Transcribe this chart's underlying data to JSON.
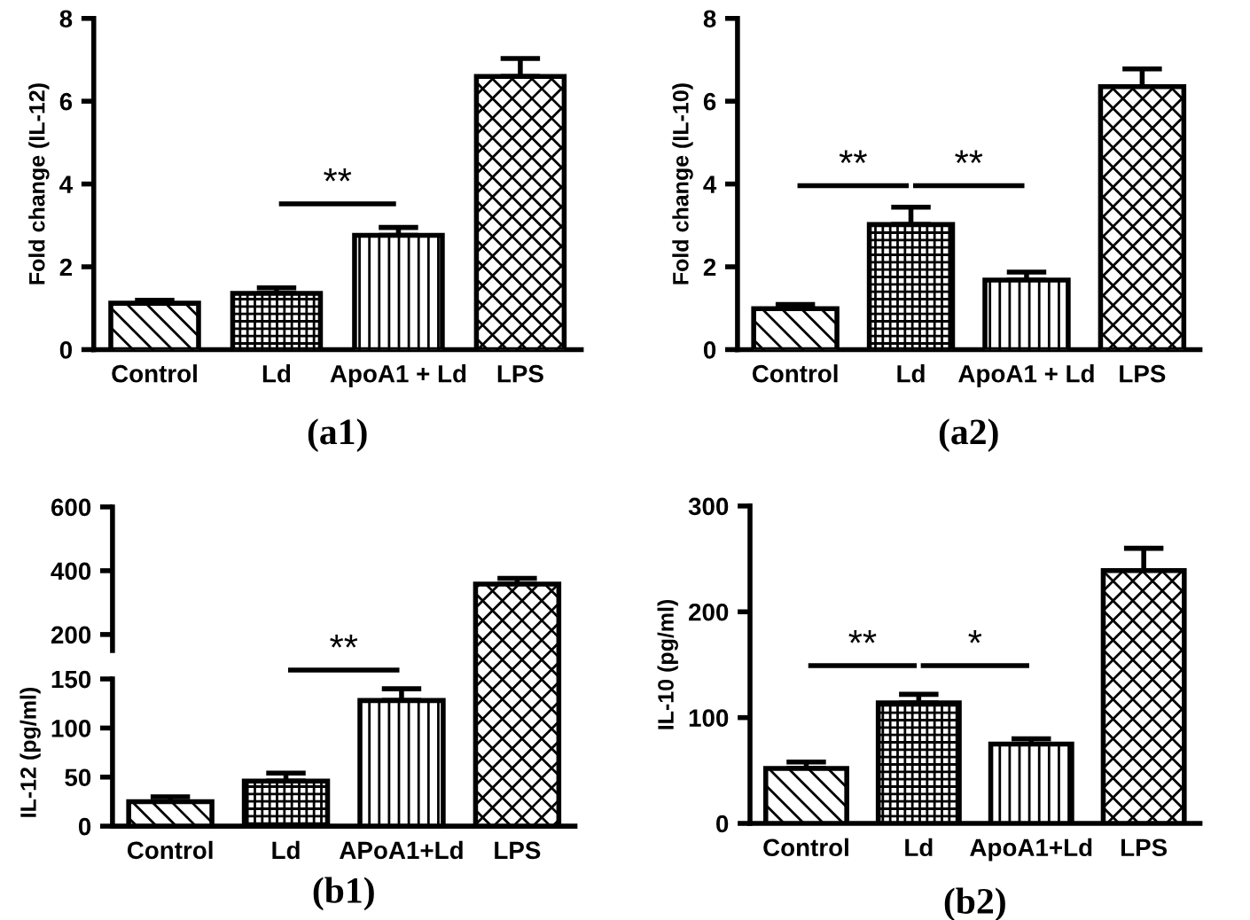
{
  "chart_data": [
    {
      "type": "bar",
      "title": "(a1)",
      "ylabel": "Fold change (IL-12)",
      "categories": [
        "Control",
        "Ld",
        "ApoA1 + Ld",
        "LPS"
      ],
      "values": [
        1.12,
        1.36,
        2.76,
        6.6
      ],
      "errors": [
        0.07,
        0.13,
        0.19,
        0.43
      ],
      "ylim": [
        0,
        8
      ],
      "yticks": [
        0,
        2,
        4,
        6,
        8
      ],
      "annotations": [
        "**"
      ]
    },
    {
      "type": "bar",
      "title": "(a2)",
      "ylabel": "Fold change (IL-10)",
      "categories": [
        "Control",
        "Ld",
        "ApoA1 + Ld",
        "LPS"
      ],
      "values": [
        0.99,
        3.02,
        1.68,
        6.35
      ],
      "errors": [
        0.1,
        0.42,
        0.19,
        0.43
      ],
      "ylim": [
        0,
        8
      ],
      "yticks": [
        0,
        2,
        4,
        6,
        8
      ],
      "annotations": [
        "**",
        "**"
      ]
    },
    {
      "type": "bar",
      "values": [
        null,
        null,
        null,
        358
      ],
      "errors": [
        null,
        null,
        null,
        18
      ],
      "ylim": [
        150,
        600
      ],
      "yticks": [
        200,
        400,
        600
      ],
      "tick_labels": "y"
    },
    {
      "type": "bar",
      "title": "(b1)",
      "ylabel": "IL-12 (pg/ml)",
      "categories": [
        "Control",
        "Ld",
        "APoA1+Ld",
        "LPS"
      ],
      "values": [
        25,
        46,
        128,
        null
      ],
      "errors": [
        5,
        8,
        12,
        null
      ],
      "ylim": [
        0,
        150
      ],
      "yticks": [
        0,
        50,
        100,
        150
      ],
      "annotations": [
        "**"
      ]
    },
    {
      "type": "bar",
      "title": "(b2)",
      "ylabel": "IL-10 (pg/ml)",
      "categories": [
        "Control",
        "Ld",
        "ApoA1+Ld",
        "LPS"
      ],
      "values": [
        52,
        114,
        75,
        239
      ],
      "errors": [
        6,
        8,
        5,
        21
      ],
      "ylim": [
        0,
        300
      ],
      "yticks": [
        0,
        100,
        200,
        300
      ],
      "annotations": [
        "**",
        "*"
      ]
    }
  ]
}
